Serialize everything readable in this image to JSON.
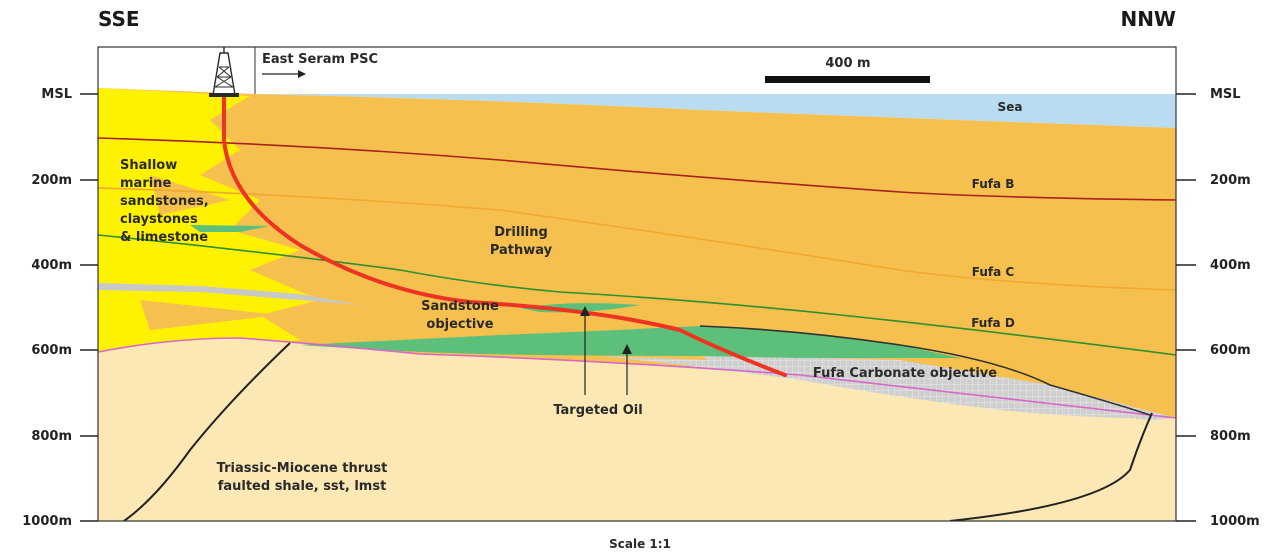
{
  "orientation": {
    "left": "SSE",
    "right": "NNW"
  },
  "depth_labels": [
    "MSL",
    "200m",
    "400m",
    "600m",
    "800m",
    "1000m"
  ],
  "block_label": "East Seram PSC",
  "scale_bar_label": "400 m",
  "scale_text": "Scale 1:1",
  "horizons": {
    "sea": "Sea",
    "fufa_b": "Fufa B",
    "fufa_c": "Fufa C",
    "fufa_d": "Fufa D"
  },
  "units": {
    "shallow": [
      "Shallow",
      "marine",
      "sandstones,",
      "claystones",
      "& limestone"
    ],
    "drilling": [
      "Drilling",
      "Pathway"
    ],
    "sandstone": [
      "Sandstone",
      "objective"
    ],
    "carbonate": "Fufa Carbonate objective",
    "targeted": "Targeted Oil",
    "basement": [
      "Triassic-Miocene thrust",
      "faulted shale, sst, lmst"
    ]
  },
  "colors": {
    "sea": "#b9dcf0",
    "fufa_fill": "#f6c04e",
    "basement_fill": "#fbe8b4",
    "sand_yellow": "#fff200",
    "green_reservoir": "#5cbf7a",
    "carbonate_grey": "#c8c8c8",
    "well_path": "#ee3322",
    "fufa_b_line": "#a8231e",
    "fufa_c_line": "#f0a830",
    "fufa_d_line": "#2e8f2e",
    "unconformity": "#d868c8"
  }
}
